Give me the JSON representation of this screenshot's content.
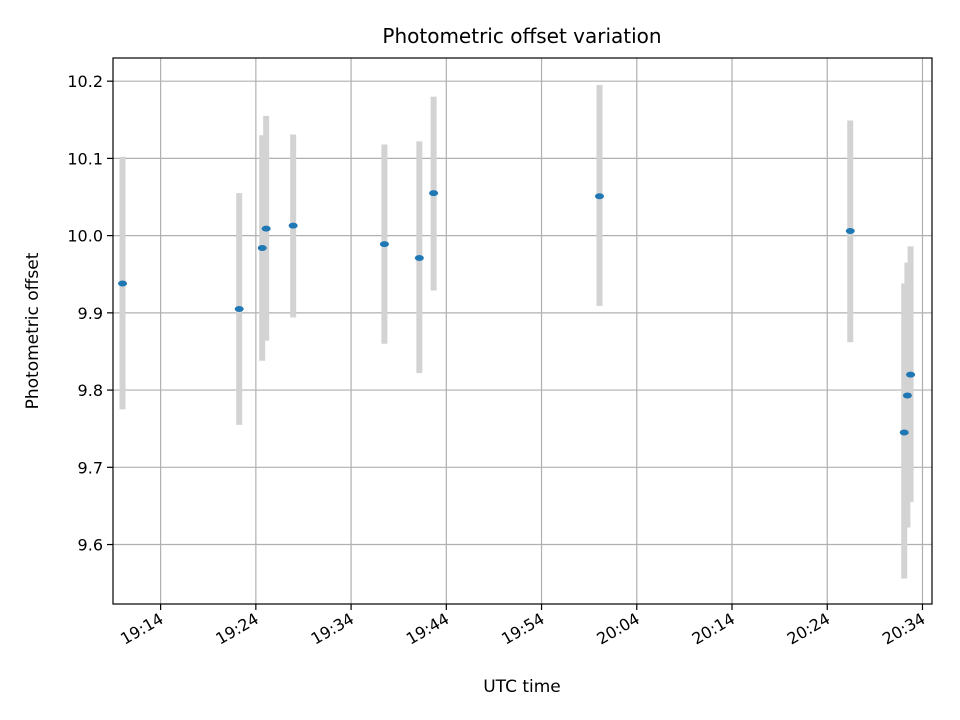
{
  "chart_data": {
    "type": "scatter",
    "title": "Photometric offset variation",
    "xlabel": "UTC time",
    "ylabel": "Photometric offset",
    "grid": true,
    "xlim": [
      "19:09",
      "20:35"
    ],
    "ylim": [
      9.523,
      10.23
    ],
    "x_ticks": [
      "19:14",
      "19:24",
      "19:34",
      "19:44",
      "19:54",
      "20:04",
      "20:14",
      "20:24",
      "20:34"
    ],
    "y_ticks": [
      "9.6",
      "9.7",
      "9.8",
      "9.9",
      "10.0",
      "10.1",
      "10.2"
    ],
    "colors": {
      "point": "#1f77b4",
      "errorbar": "#d3d3d3",
      "grid": "#b0b0b0"
    },
    "points": [
      {
        "x": "19:10:00",
        "y": 9.938,
        "err_low": 9.775,
        "err_high": 10.102
      },
      {
        "x": "19:22:15",
        "y": 9.905,
        "err_low": 9.755,
        "err_high": 10.055
      },
      {
        "x": "19:24:40",
        "y": 9.984,
        "err_low": 9.838,
        "err_high": 10.13
      },
      {
        "x": "19:25:05",
        "y": 10.009,
        "err_low": 9.864,
        "err_high": 10.155
      },
      {
        "x": "19:27:55",
        "y": 10.013,
        "err_low": 9.894,
        "err_high": 10.131
      },
      {
        "x": "19:37:30",
        "y": 9.989,
        "err_low": 9.86,
        "err_high": 10.118
      },
      {
        "x": "19:41:10",
        "y": 9.971,
        "err_low": 9.822,
        "err_high": 10.122
      },
      {
        "x": "19:42:40",
        "y": 10.055,
        "err_low": 9.929,
        "err_high": 10.18
      },
      {
        "x": "20:00:05",
        "y": 10.051,
        "err_low": 9.909,
        "err_high": 10.195
      },
      {
        "x": "20:26:25",
        "y": 10.006,
        "err_low": 9.862,
        "err_high": 10.149
      },
      {
        "x": "20:32:05",
        "y": 9.745,
        "err_low": 9.556,
        "err_high": 9.938
      },
      {
        "x": "20:32:25",
        "y": 9.793,
        "err_low": 9.622,
        "err_high": 9.965
      },
      {
        "x": "20:32:45",
        "y": 9.82,
        "err_low": 9.655,
        "err_high": 9.986
      }
    ]
  }
}
